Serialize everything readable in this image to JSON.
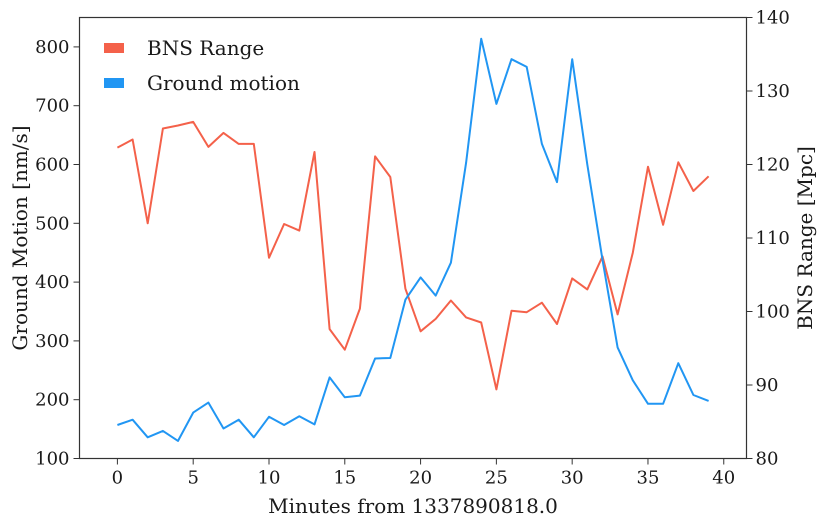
{
  "chart_data": {
    "type": "line",
    "xlabel": "Minutes from 1337890818.0",
    "ylabel_left": "Ground Motion [nm/s]",
    "ylabel_right": "BNS Range [Mpc]",
    "xlim": [
      -2.5,
      41.5
    ],
    "x_ticks": [
      0,
      5,
      10,
      15,
      20,
      25,
      30,
      35,
      40
    ],
    "y_left_lim": [
      100,
      850
    ],
    "y_left_ticks": [
      100,
      200,
      300,
      400,
      500,
      600,
      700,
      800
    ],
    "y_right_lim": [
      80,
      140
    ],
    "y_right_ticks": [
      80,
      90,
      100,
      110,
      120,
      130,
      140
    ],
    "legend_position": "top-left",
    "grid": false,
    "x": [
      0,
      1,
      2,
      3,
      4,
      5,
      6,
      7,
      8,
      9,
      10,
      11,
      12,
      13,
      14,
      15,
      16,
      17,
      18,
      19,
      20,
      21,
      22,
      23,
      24,
      25,
      26,
      27,
      28,
      29,
      30,
      31,
      32,
      33,
      34,
      35,
      36,
      37,
      38,
      39
    ],
    "series": [
      {
        "name": "BNS Range",
        "axis": "right",
        "color": "#f4614a",
        "values": [
          122.3,
          123.4,
          112.0,
          124.9,
          125.3,
          125.8,
          122.4,
          124.3,
          122.8,
          122.8,
          107.3,
          111.9,
          111.0,
          121.7,
          97.6,
          94.8,
          100.4,
          121.1,
          118.3,
          103.1,
          97.3,
          99.0,
          101.5,
          99.2,
          98.5,
          89.4,
          100.1,
          99.9,
          101.2,
          98.3,
          104.5,
          103.0,
          107.5,
          99.6,
          108.0,
          119.7,
          111.8,
          120.3,
          116.4,
          118.4
        ]
      },
      {
        "name": "Ground motion",
        "axis": "left",
        "color": "#2196f3",
        "values": [
          157,
          166,
          136,
          147,
          130,
          178,
          195,
          151,
          166,
          136,
          171,
          157,
          172,
          158,
          238,
          204,
          207,
          270,
          271,
          370,
          408,
          377,
          433,
          603,
          814,
          703,
          779,
          766,
          635,
          570,
          779,
          600,
          438,
          289,
          233,
          193,
          193,
          262,
          208,
          198
        ]
      }
    ]
  }
}
